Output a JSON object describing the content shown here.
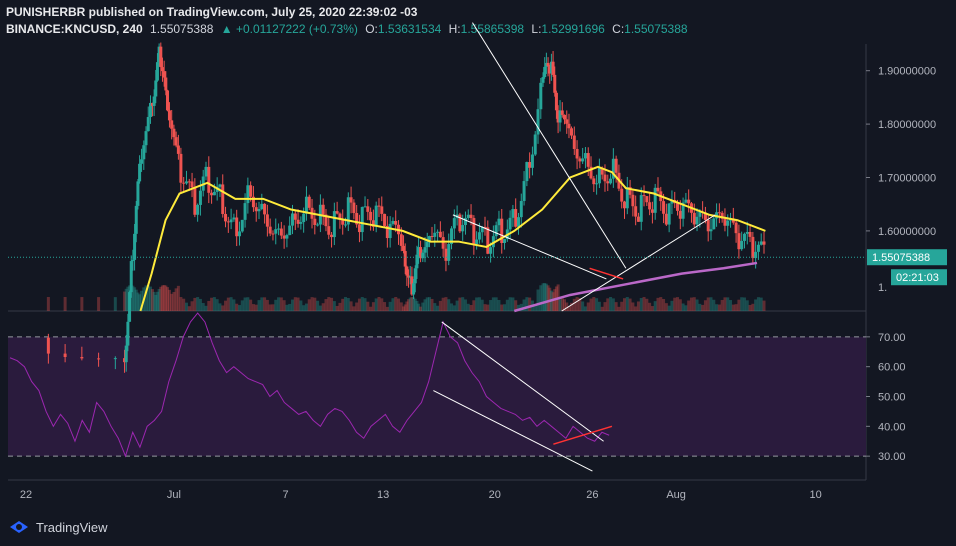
{
  "header": {
    "publisher_line": "PUNISHERBR published on TradingView.com, July 25, 2020 22:39:02 -03",
    "symbol": "BINANCE:KNCUSD, 240",
    "last": "1.55075388",
    "change": "▲ +0.01127222 (+0.73%)",
    "o_label": "O:",
    "o": "1.53631534",
    "h_label": "H:",
    "h": "1.55865398",
    "l_label": "L:",
    "l": "1.52991696",
    "c_label": "C:",
    "c": "1.55075388"
  },
  "footer": {
    "brand": "TradingView"
  },
  "colors": {
    "background": "#131722",
    "up": "#26a69a",
    "down": "#ef5350",
    "sma": "#ffeb3b",
    "long_ma": "#ba68c8",
    "rsi": "#9c27b0",
    "rsi_band": "#2a1b3d",
    "trendline": "#ffffff",
    "red_line": "#ff3333",
    "price_line": "#26a69a",
    "price_tag": "#26a69a",
    "countdown_tag": "#26a69a"
  },
  "chart_data": [
    {
      "type": "candlestick",
      "title": "BINANCE:KNCUSD, 240",
      "x_ticks": [
        "22",
        "Jul",
        "7",
        "13",
        "20",
        "26",
        "Aug",
        "10"
      ],
      "y_ticks": [
        "1.90000000",
        "1.80000000",
        "1.70000000",
        "1.60000000"
      ],
      "ylim": [
        1.45,
        1.95
      ],
      "last_price_label": "1.55075388",
      "countdown_label": "02:21:03",
      "axis_fragment": "1.",
      "price_path": [
        [
          0,
          1.4
        ],
        [
          3,
          1.35
        ],
        [
          3.3,
          1.55
        ],
        [
          3.6,
          1.72
        ],
        [
          4.0,
          1.85
        ],
        [
          4.3,
          1.93
        ],
        [
          4.6,
          1.8
        ],
        [
          5.0,
          1.72
        ],
        [
          5.5,
          1.65
        ],
        [
          6,
          1.7
        ],
        [
          6.5,
          1.66
        ],
        [
          7,
          1.6
        ],
        [
          7.5,
          1.68
        ],
        [
          8,
          1.64
        ],
        [
          8.5,
          1.6
        ],
        [
          9,
          1.62
        ],
        [
          9.5,
          1.65
        ],
        [
          10,
          1.63
        ],
        [
          10.5,
          1.61
        ],
        [
          11,
          1.64
        ],
        [
          11.5,
          1.62
        ],
        [
          12,
          1.63
        ],
        [
          12.5,
          1.6
        ],
        [
          13,
          1.58
        ],
        [
          13.3,
          1.5
        ],
        [
          13.6,
          1.55
        ],
        [
          14,
          1.6
        ],
        [
          14.5,
          1.55
        ],
        [
          15,
          1.62
        ],
        [
          15.5,
          1.6
        ],
        [
          16,
          1.58
        ],
        [
          16.5,
          1.6
        ],
        [
          17,
          1.62
        ],
        [
          17.5,
          1.72
        ],
        [
          18,
          1.88
        ],
        [
          18.3,
          1.9
        ],
        [
          18.6,
          1.82
        ],
        [
          19,
          1.78
        ],
        [
          19.5,
          1.74
        ],
        [
          20,
          1.7
        ],
        [
          20.5,
          1.72
        ],
        [
          21,
          1.66
        ],
        [
          21.5,
          1.64
        ],
        [
          22,
          1.66
        ],
        [
          22.5,
          1.63
        ],
        [
          23,
          1.64
        ],
        [
          23.5,
          1.62
        ],
        [
          24,
          1.6
        ],
        [
          24.5,
          1.62
        ],
        [
          25,
          1.58
        ],
        [
          25.5,
          1.57
        ],
        [
          26,
          1.55
        ]
      ],
      "sma_path": [
        [
          3.6,
          1.45
        ],
        [
          4,
          1.52
        ],
        [
          4.5,
          1.62
        ],
        [
          5,
          1.67
        ],
        [
          6,
          1.69
        ],
        [
          7,
          1.66
        ],
        [
          8,
          1.66
        ],
        [
          9,
          1.64
        ],
        [
          10,
          1.63
        ],
        [
          11,
          1.62
        ],
        [
          12,
          1.61
        ],
        [
          13,
          1.6
        ],
        [
          14,
          1.58
        ],
        [
          15,
          1.58
        ],
        [
          16,
          1.57
        ],
        [
          17,
          1.6
        ],
        [
          18,
          1.64
        ],
        [
          19,
          1.7
        ],
        [
          20,
          1.72
        ],
        [
          20.5,
          1.71
        ],
        [
          21,
          1.68
        ],
        [
          22,
          1.67
        ],
        [
          23,
          1.65
        ],
        [
          24,
          1.63
        ],
        [
          25,
          1.62
        ],
        [
          26,
          1.6
        ]
      ],
      "long_ma_path": [
        [
          17,
          1.45
        ],
        [
          19,
          1.48
        ],
        [
          21,
          1.5
        ],
        [
          23,
          1.52
        ],
        [
          24.5,
          1.53
        ],
        [
          25.7,
          1.54
        ]
      ]
    },
    {
      "type": "line",
      "title": "RSI",
      "y_ticks": [
        "70.00",
        "60.00",
        "50.00",
        "40.00",
        "30.00"
      ],
      "ylim": [
        22,
        78
      ],
      "band": [
        30,
        70
      ],
      "values": [
        63,
        62,
        60,
        55,
        52,
        45,
        40,
        44,
        41,
        35,
        42,
        38,
        48,
        45,
        40,
        36,
        30,
        38,
        33,
        40,
        42,
        45,
        55,
        62,
        70,
        75,
        78,
        75,
        68,
        62,
        58,
        60,
        58,
        56,
        55,
        54,
        50,
        52,
        48,
        46,
        44,
        45,
        42,
        40,
        44,
        46,
        45,
        42,
        38,
        36,
        40,
        42,
        44,
        40,
        38,
        42,
        45,
        48,
        55,
        65,
        75,
        70,
        68,
        62,
        58,
        55,
        50,
        48,
        46,
        45,
        44,
        42,
        43,
        40,
        42,
        40,
        38,
        36,
        40,
        38,
        36,
        35,
        38,
        37
      ]
    }
  ]
}
